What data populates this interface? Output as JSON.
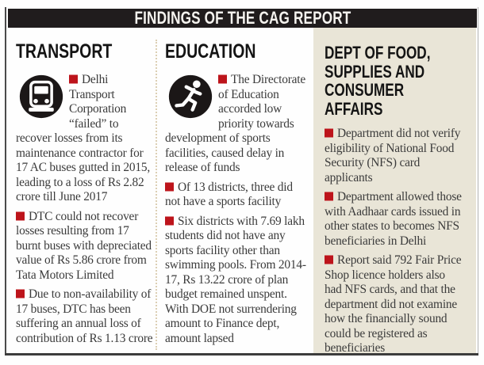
{
  "header": {
    "title": "FINDINGS OF THE CAG REPORT"
  },
  "columns": [
    {
      "id": "transport",
      "heading": "TRANSPORT",
      "icon": "bus-icon",
      "items": [
        "Delhi Transport Corporation “failed” to recover losses from its maintenance contractor for 17 AC buses gutted in 2015, leading to a loss of Rs 2.82 crore till June 2017",
        "DTC could not recover losses resulting from 17 burnt buses with depreciated value of Rs 5.86 crore from Tata Motors Limited",
        "Due to non-availability of 17 buses, DTC has been suffering an annual loss of contribution of Rs 1.13 crore"
      ]
    },
    {
      "id": "education",
      "heading": "EDUCATION",
      "icon": "runner-icon",
      "items": [
        "The Directorate of Education accorded low priority towards development of sports facilities, caused delay in release of funds",
        "Of 13 districts, three did not have a sports facility",
        "Six districts with 7.69 lakh students did not have any sports facility other than swimming pools. From 2014-17, Rs 13.22 crore of plan budget remained unspent. With DOE not surrendering amount to Finance dept, amount lapsed"
      ]
    },
    {
      "id": "food-supplies",
      "heading": "DEPT OF FOOD, SUPPLIES AND CONSUMER AFFAIRS",
      "icon": null,
      "items": [
        "Department did not verify eligibility of National Food Security (NFS) card applicants",
        "Department allowed those with Aadhaar cards issued in other states to becomes NFS beneficiaries in Delhi",
        "Report said 792 Fair Price Shop licence holders also had NFS cards, and that the department did not examine how the financially sound could be registered as beneficiaries"
      ]
    }
  ],
  "colors": {
    "band_bg": "#201c1d",
    "accent_red": "#bd141b",
    "panel_beige": "#e9e5d7",
    "body_text": "#3b3b3b",
    "heading_text": "#141414"
  }
}
